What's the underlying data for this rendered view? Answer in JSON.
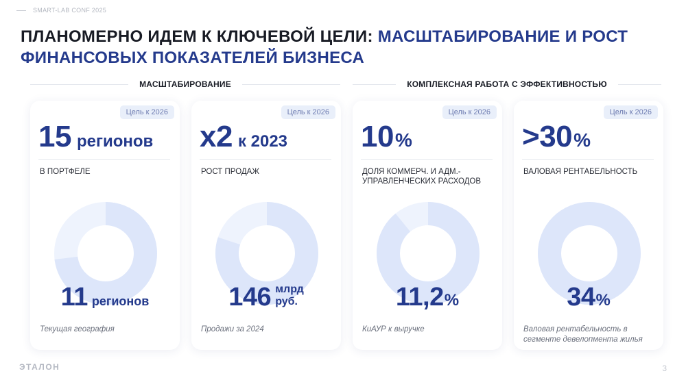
{
  "conference": "SMART-LAB CONF 2025",
  "title": {
    "part1": "ПЛАНОМЕРНО ИДЕМ К КЛЮЧЕВОЙ ЦЕЛИ: ",
    "part2": "МАСШТАБИРОВАНИЕ И РОСТ ФИНАНСОВЫХ ПОКАЗАТЕЛЕЙ БИЗНЕСА"
  },
  "sections": {
    "left": "МАСШТАБИРОВАНИЕ",
    "right": "КОМПЛЕКСНАЯ РАБОТА С ЭФФЕКТИВНОСТЬЮ"
  },
  "colors": {
    "accent": "#243a8c",
    "donut_track": "#eef3fd",
    "donut_fill": "#dde6fa"
  },
  "cards": [
    {
      "badge": "Цель к 2026",
      "target_num": "15",
      "target_unit": "регионов",
      "description": "В ПОРТФЕЛЕ",
      "current_num": "11",
      "current_unit": "регионов",
      "caption": "Текущая география",
      "progress": 0.73
    },
    {
      "badge": "Цель к 2026",
      "target_num": "х2",
      "target_unit": "к 2023",
      "description": "РОСТ ПРОДАЖ",
      "current_num": "146",
      "current_unit_line1": "млрд",
      "current_unit_line2": "руб.",
      "caption": "Продажи за 2024",
      "progress": 0.8
    },
    {
      "badge": "Цель к 2026",
      "target_num": "10",
      "target_pct": "%",
      "description": "ДОЛЯ КОММЕРЧ. И АДМ.- УПРАВЛЕНЧЕСКИХ РАСХОДОВ",
      "current_num": "11,2",
      "current_pct": "%",
      "caption": "КиАУР к выручке",
      "progress": 0.89
    },
    {
      "badge": "Цель к 2026",
      "target_num": ">30",
      "target_pct": "%",
      "description": "ВАЛОВАЯ РЕНТАБЕЛЬНОСТЬ",
      "current_num": "34",
      "current_pct": "%",
      "caption": "Валовая рентабельность в сегменте девелопмента жилья",
      "progress": 1.0
    }
  ],
  "footer": {
    "logo": "ЭТАЛОН",
    "page": "3"
  }
}
